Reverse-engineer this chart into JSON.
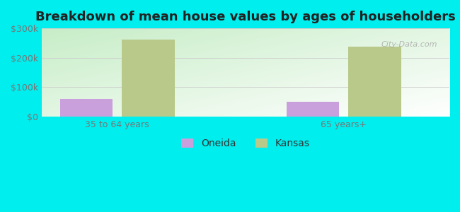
{
  "title": "Breakdown of mean house values by ages of householders",
  "categories": [
    "35 to 64 years",
    "65 years+"
  ],
  "series": {
    "Oneida": [
      60000,
      50000
    ],
    "Kansas": [
      262000,
      237000
    ]
  },
  "bar_colors": {
    "Oneida": "#c9a0dc",
    "Kansas": "#b8c98a"
  },
  "ylim": [
    0,
    300000
  ],
  "yticks": [
    0,
    100000,
    200000,
    300000
  ],
  "ytick_labels": [
    "$0",
    "$100k",
    "$200k",
    "$300k"
  ],
  "background_color": "#00eeee",
  "title_fontsize": 13,
  "tick_fontsize": 9,
  "legend_fontsize": 10,
  "bar_width": 0.35,
  "group_positions": [
    0.5,
    2.0
  ],
  "xlim": [
    0.0,
    2.7
  ]
}
